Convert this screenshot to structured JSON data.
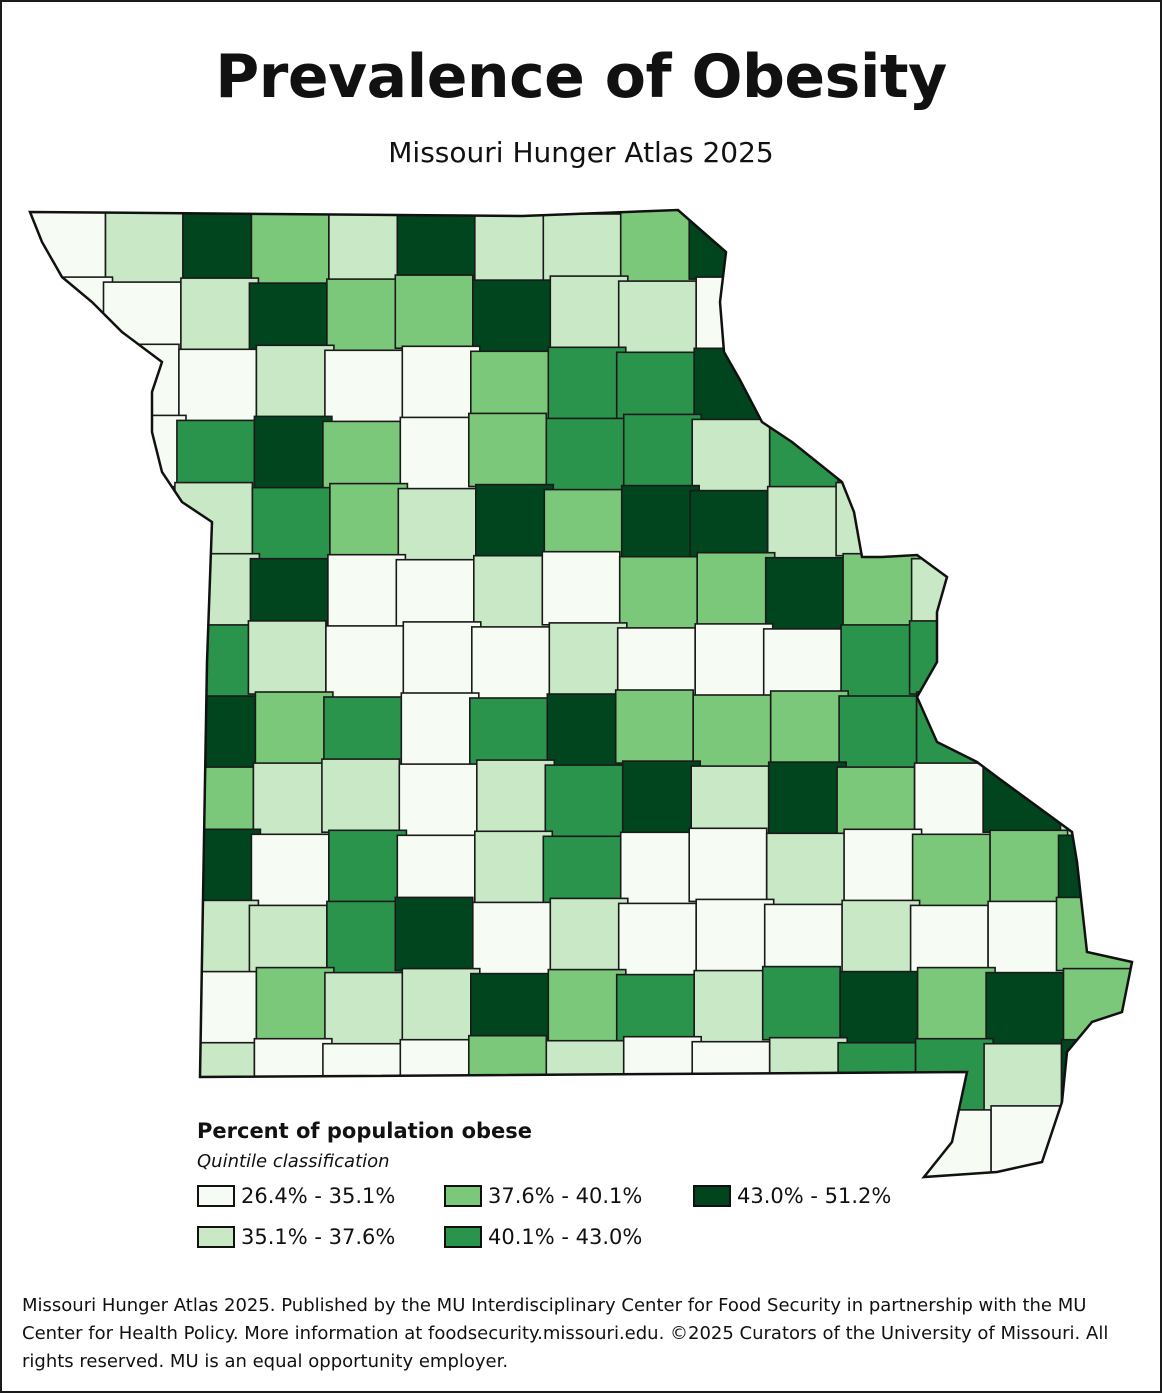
{
  "title": "Prevalence of Obesity",
  "subtitle": "Missouri Hunger Atlas 2025",
  "legend": {
    "heading": "Percent of population obese",
    "subheading": "Quintile classification",
    "classes": [
      {
        "label": "26.4% - 35.1%",
        "color": "#f6fbf3"
      },
      {
        "label": "35.1% - 37.6%",
        "color": "#c8e8c6"
      },
      {
        "label": "37.6% - 40.1%",
        "color": "#7cc87b"
      },
      {
        "label": "40.1% - 43.0%",
        "color": "#2a934c"
      },
      {
        "label": "43.0% - 51.2%",
        "color": "#00451e"
      }
    ]
  },
  "credit": "Missouri Hunger Atlas 2025. Published by the MU Interdisciplinary Center for Food Security in partnership with the MU Center for Health Policy. More information at foodsecurity.missouri.edu. ©2025 Curators of the University of Missouri. All rights reserved. MU is an equal opportunity employer.",
  "map": {
    "region": "Missouri counties",
    "counties_by_class": [
      [
        0,
        2,
        4,
        3,
        0,
        1,
        0,
        0,
        1,
        4,
        0,
        0,
        0,
        1,
        0,
        1,
        2,
        1,
        2
      ],
      [
        3,
        2,
        1,
        0,
        1,
        4,
        0,
        2,
        2,
        3,
        4,
        2,
        1,
        3,
        0,
        3,
        1,
        0,
        4,
        1
      ],
      [
        1,
        0,
        3,
        3,
        4,
        0,
        0,
        2,
        2,
        0,
        1,
        3,
        1,
        2,
        0,
        4,
        1,
        0,
        3,
        2
      ],
      [
        4,
        1,
        0,
        2,
        4,
        3,
        2,
        1,
        0,
        3,
        1,
        4,
        0,
        2,
        1,
        4,
        0,
        2,
        3,
        1
      ]
    ]
  }
}
